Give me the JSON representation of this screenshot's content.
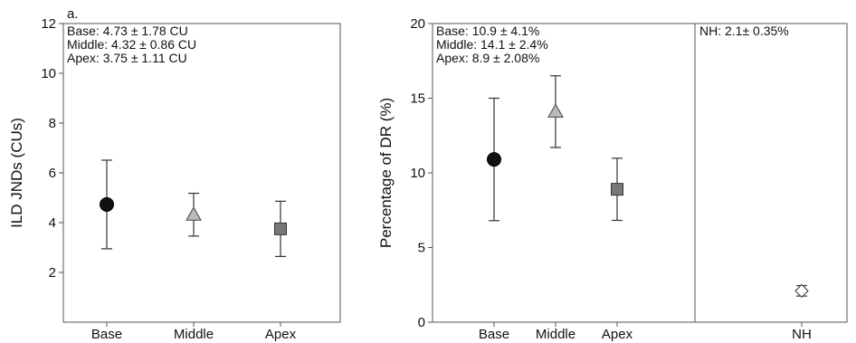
{
  "chart_data": [
    {
      "type": "scatter",
      "panel_label": "a.",
      "ylabel": "ILD JNDs (CUs)",
      "xlabel": "",
      "categories": [
        "Base",
        "Middle",
        "Apex"
      ],
      "ylim": [
        0,
        12
      ],
      "yticks": [
        "2",
        "4",
        "6",
        "8",
        "10",
        "12"
      ],
      "series": [
        {
          "category": "Base",
          "mean": 4.73,
          "sd": 1.78,
          "marker": "circle",
          "color": "#111111"
        },
        {
          "category": "Middle",
          "mean": 4.32,
          "sd": 0.86,
          "marker": "triangle",
          "color": "#bbbbbb"
        },
        {
          "category": "Apex",
          "mean": 3.75,
          "sd": 1.11,
          "marker": "square",
          "color": "#777777"
        }
      ],
      "annotations": [
        "Base: 4.73 ± 1.78 CU",
        "Middle: 4.32 ± 0.86 CU",
        "Apex: 3.75 ± 1.11 CU"
      ],
      "grid": false
    },
    {
      "type": "scatter",
      "ylabel": "Percentage of DR (%)",
      "xlabel": "",
      "categories": [
        "Base",
        "Middle",
        "Apex",
        "NH"
      ],
      "ylim": [
        0,
        20
      ],
      "yticks": [
        "0",
        "5",
        "10",
        "15",
        "20"
      ],
      "series": [
        {
          "category": "Base",
          "mean": 10.9,
          "sd": 4.1,
          "marker": "circle",
          "color": "#111111"
        },
        {
          "category": "Middle",
          "mean": 14.1,
          "sd": 2.4,
          "marker": "triangle",
          "color": "#bbbbbb"
        },
        {
          "category": "Apex",
          "mean": 8.9,
          "sd": 2.08,
          "marker": "square",
          "color": "#777777"
        },
        {
          "category": "NH",
          "mean": 2.1,
          "sd": 0.35,
          "marker": "diamond",
          "color": "#ffffff"
        }
      ],
      "annotations": [
        "Base: 10.9 ± 4.1%",
        "Middle: 14.1 ± 2.4%",
        "Apex: 8.9 ± 2.08%"
      ],
      "annotation_nh": "NH: 2.1± 0.35%",
      "grid": false
    }
  ]
}
